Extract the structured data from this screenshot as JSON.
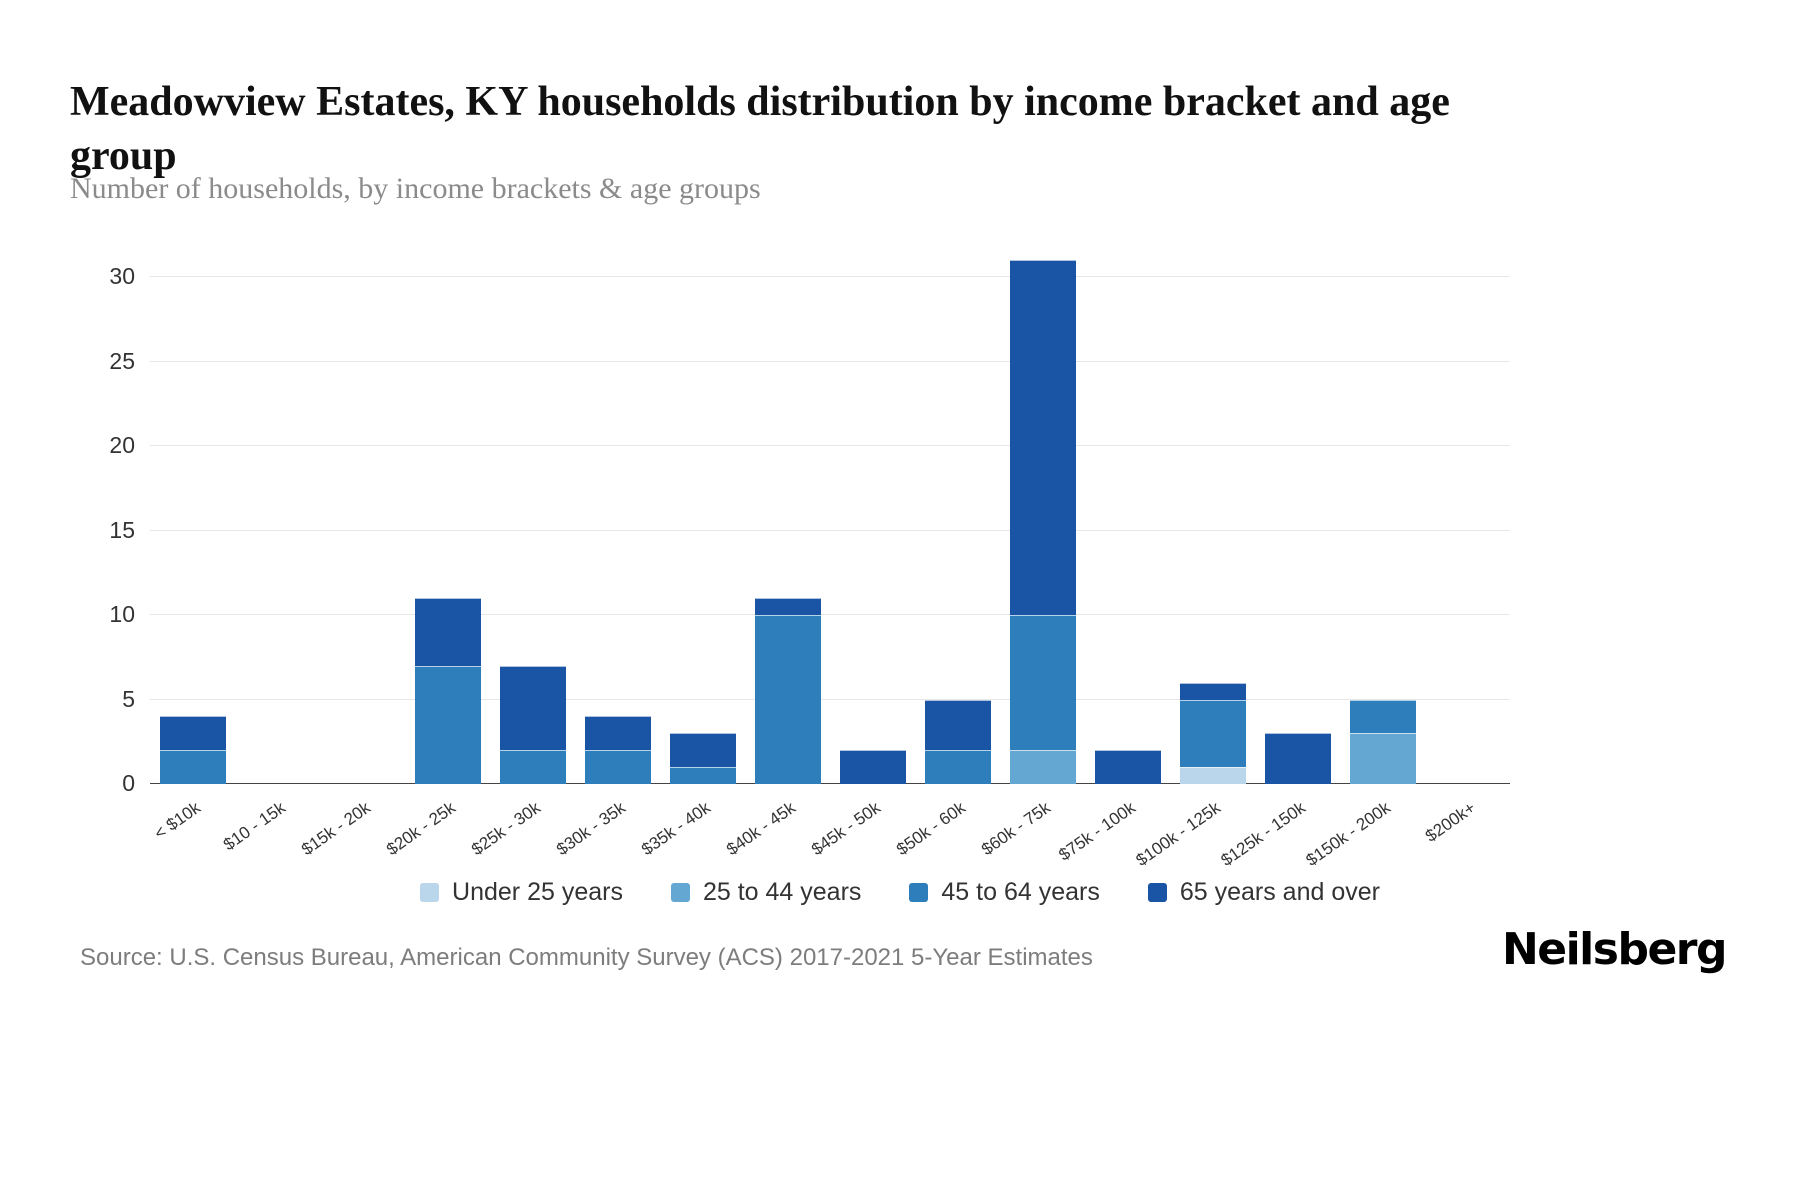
{
  "header": {
    "title": "Meadowview Estates, KY households distribution by income bracket and age group",
    "subtitle": "Number of households, by income brackets & age groups"
  },
  "footer": {
    "source": "Source: U.S. Census Bureau, American Community Survey (ACS) 2017-2021 5-Year Estimates",
    "brand": "Neilsberg"
  },
  "chart_data": {
    "type": "bar",
    "stacked": true,
    "title": "Meadowview Estates, KY households distribution by income bracket and age group",
    "xlabel": "Income brackets",
    "ylabel": "Number of households",
    "ylim": [
      0,
      31.5
    ],
    "yticks": [
      0,
      5,
      10,
      15,
      20,
      25,
      30
    ],
    "grid": true,
    "legend_position": "bottom",
    "categories": [
      "< $10k",
      "$10 - 15k",
      "$15k - 20k",
      "$20k - 25k",
      "$25k - 30k",
      "$30k - 35k",
      "$35k - 40k",
      "$40k - 45k",
      "$45k - 50k",
      "$50k - 60k",
      "$60k - 75k",
      "$75k - 100k",
      "$100k - 125k",
      "$125k - 150k",
      "$150k - 200k",
      "$200k+"
    ],
    "series": [
      {
        "name": "Under 25 years",
        "color": "#b9d6ea",
        "values": [
          0,
          0,
          0,
          0,
          0,
          0,
          0,
          0,
          0,
          0,
          0,
          0,
          1,
          0,
          0,
          0
        ]
      },
      {
        "name": "25 to 44 years",
        "color": "#64a7d3",
        "values": [
          0,
          0,
          0,
          0,
          0,
          0,
          0,
          0,
          0,
          0,
          2,
          0,
          0,
          0,
          3,
          0
        ]
      },
      {
        "name": "45 to 64 years",
        "color": "#2f7ebc",
        "values": [
          2,
          0,
          0,
          7,
          2,
          2,
          1,
          10,
          0,
          2,
          8,
          0,
          4,
          0,
          2,
          0
        ]
      },
      {
        "name": "65 years and over",
        "color": "#1a55a5",
        "values": [
          2,
          0,
          0,
          4,
          5,
          2,
          2,
          1,
          2,
          3,
          21,
          2,
          1,
          3,
          0,
          0
        ]
      }
    ]
  }
}
